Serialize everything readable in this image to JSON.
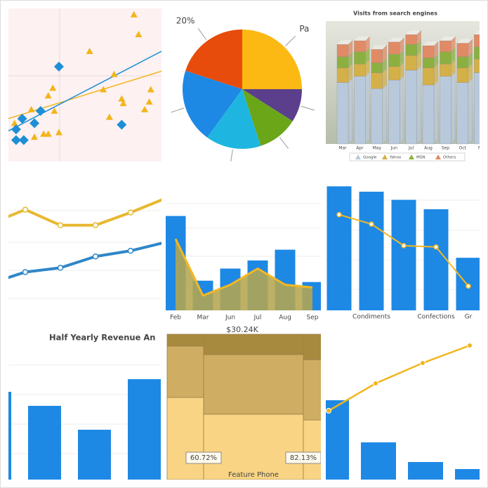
{
  "chart_data": [
    {
      "type": "scatter",
      "xlim": [
        0,
        100
      ],
      "ylim": [
        0,
        100
      ],
      "series": [
        {
          "color": "#f2b51b",
          "marker": "triangle",
          "x": [
            82,
            85,
            53,
            69,
            62,
            75,
            74,
            92,
            93,
            89,
            66,
            29,
            26,
            30,
            23,
            26,
            33,
            15,
            17,
            4
          ],
          "values": [
            96,
            83,
            72,
            57,
            47,
            38,
            41,
            39,
            47,
            34,
            29,
            48,
            43,
            33,
            18,
            18,
            19,
            34,
            16,
            25
          ],
          "trend_values": [
            28,
            59
          ]
        },
        {
          "color": "#1e8fd6",
          "marker": "diamond",
          "x": [
            33,
            9,
            5,
            5,
            10,
            17,
            21,
            74
          ],
          "values": [
            62,
            28,
            21,
            14,
            14,
            25,
            33,
            24
          ],
          "trend_values": [
            20,
            72
          ]
        }
      ]
    },
    {
      "type": "pie",
      "categories": [
        "Pa",
        null,
        null,
        null,
        null,
        null
      ],
      "values": [
        25,
        9,
        11,
        15,
        20,
        20
      ],
      "value_labels": [
        null,
        null,
        null,
        null,
        null,
        "20%"
      ],
      "colors": [
        "#fdb913",
        "#5b3f8c",
        "#6aa618",
        "#1eb6e0",
        "#1e88e5",
        "#e84c0c"
      ]
    },
    {
      "type": "stacked_bar_3d",
      "title": "Visits from search engines",
      "categories": [
        "Mar",
        "Apr",
        "May",
        "Jun",
        "Jul",
        "Aug",
        "Sep",
        "Oct",
        "N"
      ],
      "ylim": [
        0,
        100
      ],
      "series": [
        {
          "name": "Google",
          "color": "#b9c9dc",
          "values": [
            50,
            55,
            45,
            52,
            60,
            48,
            55,
            50,
            58
          ]
        },
        {
          "name": "Yahoo",
          "color": "#d4b048",
          "values": [
            12,
            10,
            13,
            11,
            12,
            14,
            10,
            12,
            11
          ]
        },
        {
          "name": "MSN",
          "color": "#8cb040",
          "values": [
            9,
            10,
            8,
            10,
            9,
            8,
            10,
            9,
            10
          ]
        },
        {
          "name": "Others",
          "color": "#e08a66",
          "values": [
            10,
            9,
            11,
            10,
            8,
            10,
            9,
            11,
            10
          ]
        }
      ]
    },
    {
      "type": "line",
      "ylim": [
        0,
        100
      ],
      "xlim": [
        -0.5,
        4
      ],
      "x": [
        -0.5,
        0,
        1,
        2,
        3,
        4
      ],
      "series": [
        {
          "color": "#e8b830",
          "values": [
            66,
            71,
            60,
            60,
            69,
            79
          ]
        },
        {
          "color": "#2f86c8",
          "values": [
            23,
            27,
            30,
            38,
            42,
            48
          ]
        }
      ]
    },
    {
      "type": "bar_area",
      "categories": [
        "Feb",
        "Mar",
        "Jun",
        "Jul",
        "Aug",
        "Sep"
      ],
      "ylim": [
        0,
        100
      ],
      "series": [
        {
          "color": "#1e88e5",
          "values": [
            70,
            22,
            31,
            37,
            45,
            21
          ]
        },
        {
          "color": "#f5b820",
          "fill": "#b5a650",
          "values": [
            53,
            11,
            19,
            31,
            19,
            17
          ]
        }
      ]
    },
    {
      "type": "bar_line",
      "categories": [
        null,
        "Condiments",
        null,
        "Confections",
        "Gr"
      ],
      "ylim": [
        0,
        100
      ],
      "series": [
        {
          "color": "#1e88e5",
          "values": [
            92,
            88,
            82,
            75,
            39
          ]
        },
        {
          "color": "#f5b820",
          "values": [
            71,
            64,
            48,
            47,
            18
          ]
        }
      ]
    },
    {
      "type": "bar",
      "title": "Half Yearly Revenue An",
      "categories": [
        null,
        null,
        null,
        null
      ],
      "ylim": [
        0,
        100
      ],
      "color": "#1e88e5",
      "values": [
        62.5,
        52.5,
        35.5,
        71.5
      ]
    },
    {
      "type": "marimekko",
      "title": "$30.24K",
      "categories": [
        null,
        "Feature Phone",
        null
      ],
      "widths": [
        26,
        71,
        30
      ],
      "ylim": [
        0,
        100
      ],
      "annotations": [
        "60.72%",
        "82.13%"
      ],
      "series": [
        {
          "color": "#f8d484",
          "values": [
            56.5,
            45,
            41
          ]
        },
        {
          "color": "#cfad62",
          "values": [
            35.3,
            41,
            41.5
          ]
        },
        {
          "color": "#a88a3e",
          "values": [
            8.2,
            14,
            17.5
          ]
        }
      ]
    },
    {
      "type": "pareto",
      "ylim": [
        0,
        100
      ],
      "series": [
        {
          "color": "#1e88e5",
          "values": [
            56.5,
            26.5,
            12.5,
            7.5
          ]
        },
        {
          "color": "#f2b51b",
          "values": [
            49,
            68.5,
            83,
            95.5
          ]
        }
      ]
    }
  ]
}
